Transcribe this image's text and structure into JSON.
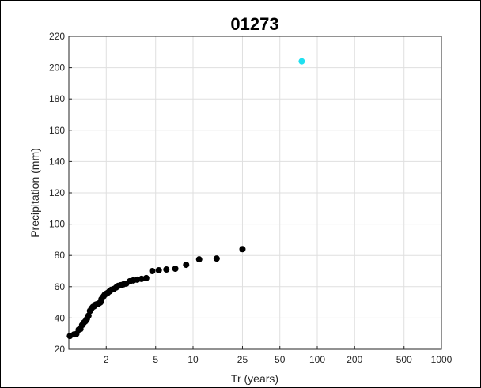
{
  "chart_data": {
    "type": "scatter",
    "title": "01273",
    "xlabel": "Tr (years)",
    "ylabel": "Precipitation (mm)",
    "x_scale": "log",
    "xlim": [
      1.0,
      1000
    ],
    "ylim": [
      20,
      220
    ],
    "grid": true,
    "x_ticks": [
      2,
      5,
      10,
      25,
      50,
      100,
      200,
      500,
      1000
    ],
    "x_tick_labels": [
      "2",
      "5",
      "10",
      "25",
      "50",
      "100",
      "200",
      "500",
      "1000"
    ],
    "y_ticks": [
      20,
      40,
      60,
      80,
      100,
      120,
      140,
      160,
      180,
      200,
      220
    ],
    "y_tick_labels": [
      "20",
      "40",
      "60",
      "80",
      "100",
      "120",
      "140",
      "160",
      "180",
      "200",
      "220"
    ],
    "series": [
      {
        "color": "#000000",
        "points": [
          [
            1.02,
            28.5
          ],
          [
            1.1,
            29.5
          ],
          [
            1.15,
            29.8
          ],
          [
            1.2,
            32.5
          ],
          [
            1.24,
            33.0
          ],
          [
            1.28,
            35.5
          ],
          [
            1.32,
            37.0
          ],
          [
            1.36,
            38.0
          ],
          [
            1.4,
            39.5
          ],
          [
            1.44,
            41.5
          ],
          [
            1.48,
            44.5
          ],
          [
            1.52,
            46.0
          ],
          [
            1.56,
            47.0
          ],
          [
            1.6,
            47.5
          ],
          [
            1.64,
            48.5
          ],
          [
            1.68,
            48.8
          ],
          [
            1.72,
            49.0
          ],
          [
            1.76,
            49.5
          ],
          [
            1.8,
            50.0
          ],
          [
            1.83,
            52.0
          ],
          [
            1.87,
            53.0
          ],
          [
            1.91,
            54.0
          ],
          [
            1.95,
            55.0
          ],
          [
            2.0,
            55.5
          ],
          [
            2.05,
            56.0
          ],
          [
            2.12,
            57.0
          ],
          [
            2.2,
            58.0
          ],
          [
            2.3,
            58.5
          ],
          [
            2.4,
            59.5
          ],
          [
            2.5,
            60.5
          ],
          [
            2.62,
            61.0
          ],
          [
            2.75,
            61.5
          ],
          [
            2.9,
            62.0
          ],
          [
            3.1,
            63.5
          ],
          [
            3.3,
            64.0
          ],
          [
            3.55,
            64.5
          ],
          [
            3.85,
            65.0
          ],
          [
            4.2,
            65.5
          ],
          [
            4.7,
            70.0
          ],
          [
            5.3,
            70.5
          ],
          [
            6.1,
            71.0
          ],
          [
            7.2,
            71.5
          ],
          [
            8.8,
            74.0
          ],
          [
            11.2,
            77.5
          ],
          [
            15.5,
            78.0
          ],
          [
            25.0,
            84.0
          ]
        ]
      },
      {
        "color": "#1fe0f0",
        "points": [
          [
            75,
            204
          ]
        ]
      }
    ]
  }
}
